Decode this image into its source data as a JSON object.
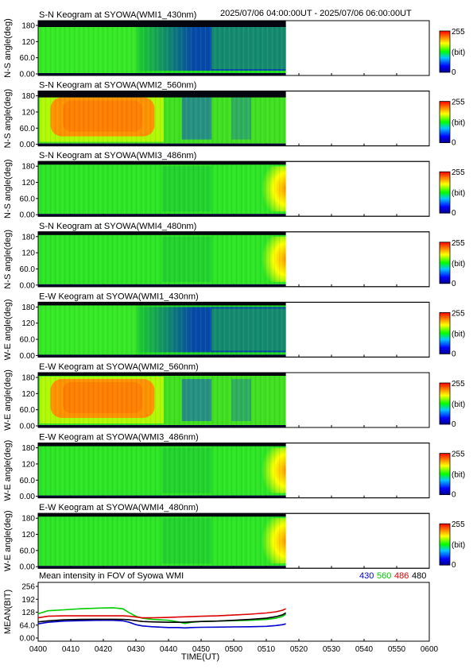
{
  "header": {
    "time_range": "2025/07/06 04:00:00UT - 2025/07/06 06:00:00UT"
  },
  "colorbar": {
    "max_label": "255",
    "min_label": "0",
    "unit_label": "(bit)"
  },
  "keograms": [
    {
      "title": "S-N Keogram at SYOWA(WMI1_430nm)",
      "ylabel": "N-S angle(deg)",
      "profile": "blue"
    },
    {
      "title": "S-N Keogram at SYOWA(WMI2_560nm)",
      "ylabel": "N-S angle(deg)",
      "profile": "orange"
    },
    {
      "title": "S-N Keogram at SYOWA(WMI3_486nm)",
      "ylabel": "N-S angle(deg)",
      "profile": "green"
    },
    {
      "title": "S-N Keogram at SYOWA(WMI4_480nm)",
      "ylabel": "N-S angle(deg)",
      "profile": "green"
    },
    {
      "title": "E-W Keogram at SYOWA(WMI1_430nm)",
      "ylabel": "W-E angle(deg)",
      "profile": "blue"
    },
    {
      "title": "E-W Keogram at SYOWA(WMI2_560nm)",
      "ylabel": "W-E angle(deg)",
      "profile": "orange"
    },
    {
      "title": "E-W Keogram at SYOWA(WMI3_486nm)",
      "ylabel": "W-E angle(deg)",
      "profile": "green"
    },
    {
      "title": "E-W Keogram at SYOWA(WMI4_480nm)",
      "ylabel": "W-E angle(deg)",
      "profile": "green"
    }
  ],
  "keogram_yticks": [
    "0.00",
    "60.0",
    "120",
    "180"
  ],
  "colors": {
    "c430": "#0000cc",
    "c560": "#00cc00",
    "c486": "#dd0000",
    "c480": "#000000"
  },
  "chart_data": {
    "type": "line",
    "title": "Mean intensity in FOV of Syowa WMI",
    "xlabel": "TIME(UT)",
    "ylabel": "MEAN(BIT)",
    "ylim": [
      0,
      256
    ],
    "xlim": [
      "0400",
      "0600"
    ],
    "xticks": [
      "0400",
      "0410",
      "0420",
      "0430",
      "0440",
      "0450",
      "0500",
      "0510",
      "0520",
      "0530",
      "0540",
      "0550",
      "0600"
    ],
    "yticks": [
      "0.00",
      "64.0",
      "128",
      "192",
      "256"
    ],
    "x": [
      0,
      3,
      8,
      13,
      18,
      23,
      26,
      28,
      30,
      32,
      35,
      40,
      43,
      45,
      47,
      50,
      55,
      60,
      65,
      70,
      73,
      75,
      76
    ],
    "series": [
      {
        "name": "430",
        "color": "#0000cc",
        "values": [
          70,
          78,
          84,
          86,
          88,
          88,
          85,
          78,
          66,
          60,
          56,
          52,
          52,
          50,
          52,
          53,
          54,
          55,
          56,
          58,
          62,
          66,
          70
        ]
      },
      {
        "name": "560",
        "color": "#00cc00",
        "values": [
          120,
          135,
          140,
          145,
          148,
          150,
          145,
          125,
          108,
          98,
          92,
          88,
          80,
          72,
          78,
          82,
          84,
          86,
          88,
          92,
          98,
          108,
          118
        ]
      },
      {
        "name": "486",
        "color": "#dd0000",
        "values": [
          100,
          108,
          110,
          110,
          110,
          110,
          110,
          108,
          104,
          100,
          100,
          102,
          104,
          105,
          106,
          108,
          110,
          114,
          118,
          124,
          130,
          138,
          145
        ]
      },
      {
        "name": "480",
        "color": "#000000",
        "values": [
          80,
          85,
          90,
          92,
          93,
          93,
          92,
          90,
          86,
          82,
          80,
          78,
          78,
          78,
          80,
          82,
          84,
          88,
          92,
          98,
          106,
          115,
          125
        ]
      }
    ]
  }
}
